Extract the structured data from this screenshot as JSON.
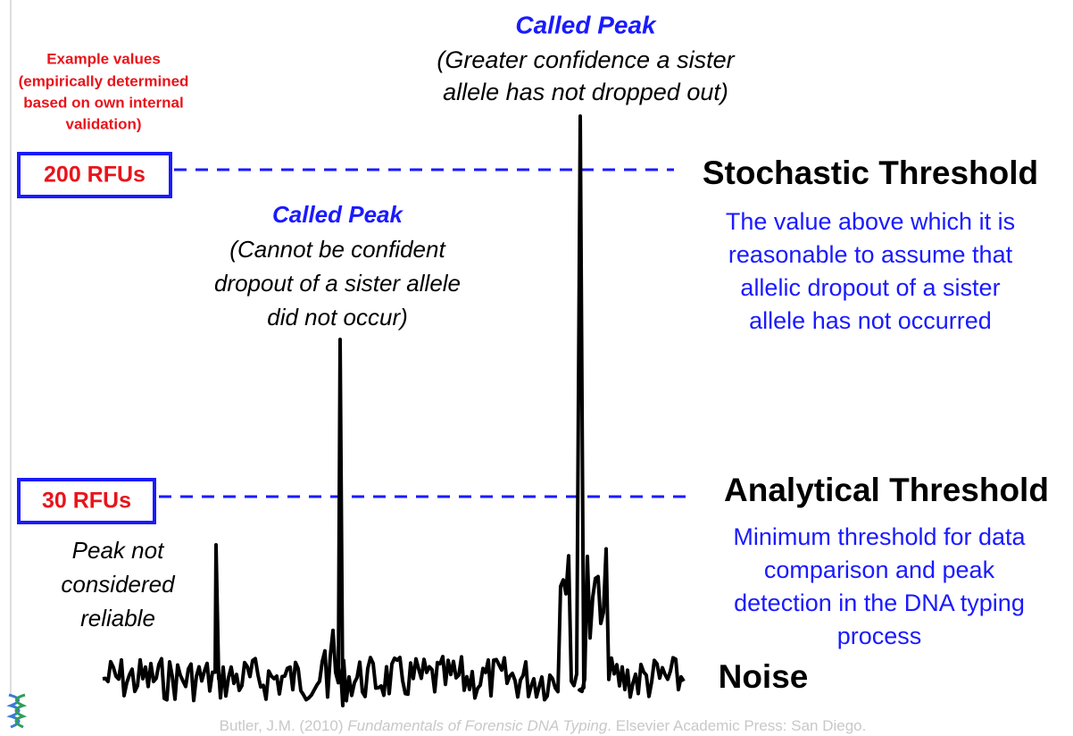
{
  "example": {
    "title": "Example values",
    "lines": [
      "(empirically determined",
      "based on own internal",
      "validation)"
    ]
  },
  "stochastic": {
    "value": "200 RFUs",
    "title": "Stochastic Threshold",
    "lines": [
      "The value above which it is",
      "reasonable to assume that",
      "allelic dropout of a sister",
      "allele has not occurred"
    ]
  },
  "analytical": {
    "value": "30 RFUs",
    "title": "Analytical Threshold",
    "lines": [
      "Minimum threshold for data",
      "comparison and peak",
      "detection in the DNA typing",
      "process"
    ]
  },
  "peak_high": {
    "title": "Called Peak",
    "lines": [
      "(Greater confidence a sister",
      "allele has not dropped out)"
    ]
  },
  "peak_mid": {
    "title": "Called Peak",
    "lines": [
      "(Cannot be confident",
      "dropout of a sister allele",
      "did not occur)"
    ]
  },
  "peak_low": {
    "lines": [
      "Peak not",
      "considered",
      "reliable"
    ]
  },
  "noise": "Noise",
  "citation": {
    "author": "Butler, J.M. (2010) ",
    "book": "Fundamentals of Forensic DNA Typing",
    "rest": ". Elsevier Academic Press: San Diego."
  }
}
